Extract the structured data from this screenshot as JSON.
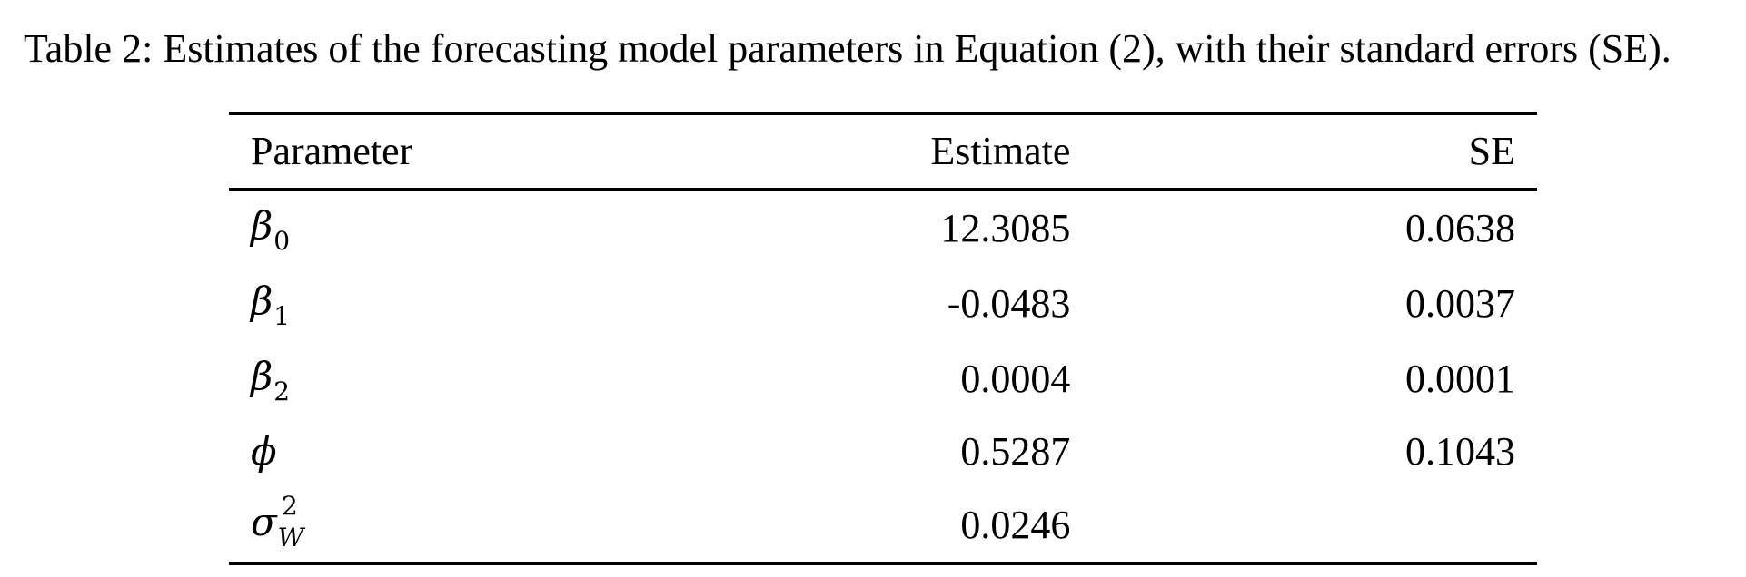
{
  "caption": "Table 2: Estimates of the forecasting model parameters in Equation (2), with their standard errors (SE).",
  "table": {
    "headers": {
      "parameter": "Parameter",
      "estimate": "Estimate",
      "se": "SE"
    },
    "rows": [
      {
        "symbol": "β",
        "sub": "0",
        "sup": "",
        "estimate": "12.3085",
        "se": "0.0638"
      },
      {
        "symbol": "β",
        "sub": "1",
        "sup": "",
        "estimate": "-0.0483",
        "se": "0.0037"
      },
      {
        "symbol": "β",
        "sub": "2",
        "sup": "",
        "estimate": "0.0004",
        "se": "0.0001"
      },
      {
        "symbol": "ϕ",
        "sub": "",
        "sup": "",
        "estimate": "0.5287",
        "se": "0.1043"
      },
      {
        "symbol": "σ",
        "sub": "W",
        "sup": "2",
        "estimate": "0.0246",
        "se": ""
      }
    ]
  }
}
